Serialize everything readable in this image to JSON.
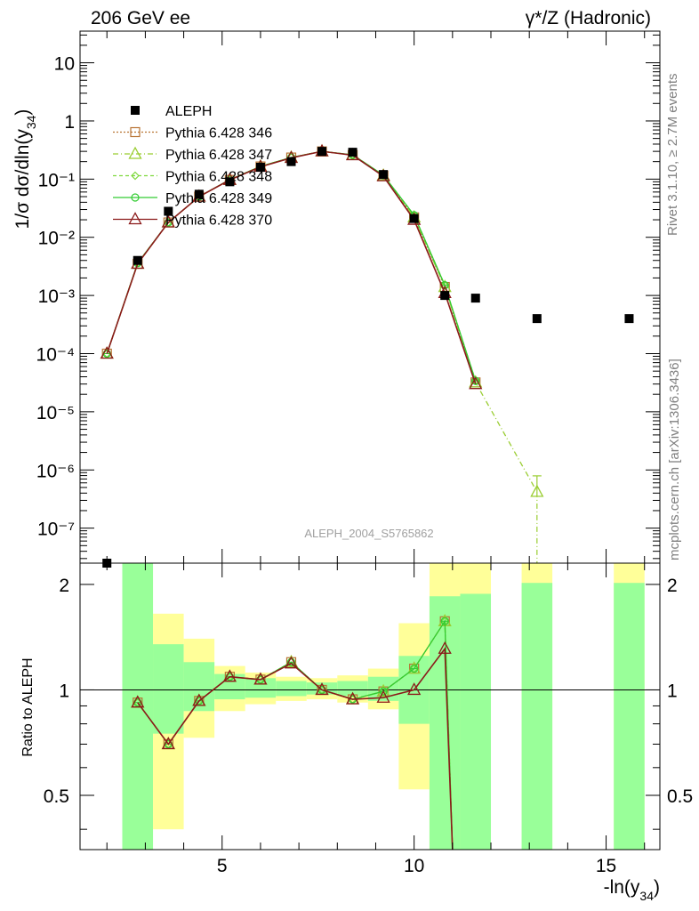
{
  "header": {
    "left": "206 GeV ee",
    "right": "γ*/Z (Hadronic)"
  },
  "side_labels": {
    "rivet": "Rivet 3.1.10, ≥ 2.7M events",
    "site": "mcplots.cern.ch [arXiv:1306.3436]"
  },
  "watermark": "ALEPH_2004_S5765862",
  "colors": {
    "data": "#000000",
    "p346": "#b87333",
    "p347": "#9acd32",
    "p348": "#7fd93f",
    "p349": "#33cc33",
    "p370": "#8b1a1a",
    "band_inner": "#99ff99",
    "band_outer": "#ffff99"
  },
  "chart_data": {
    "type": "line",
    "xlabel": "-ln(y34)",
    "ylabel": "1/σ dσ/dln(y34)",
    "xlim": [
      1.3,
      16.4
    ],
    "ylim": [
      2.5e-08,
      35
    ],
    "y_scale": "log",
    "x_ticks": [
      "5",
      "10",
      "15"
    ],
    "y_ticks": [
      "10⁻⁷",
      "10⁻⁶",
      "10⁻⁵",
      "10⁻⁴",
      "10⁻³",
      "10⁻²",
      "10⁻¹",
      "1",
      "10"
    ],
    "ratio_ylabel": "Ratio to ALEPH",
    "ratio_ylim": [
      0.35,
      2.3
    ],
    "ratio_ticks": [
      "0.5",
      "1",
      "2"
    ],
    "legend": [
      "ALEPH",
      "Pythia 6.428 346",
      "Pythia 6.428 347",
      "Pythia 6.428 348",
      "Pythia 6.428 349",
      "Pythia 6.428 370"
    ],
    "data": {
      "name": "ALEPH",
      "x": [
        2.0,
        2.8,
        3.6,
        4.4,
        5.2,
        6.0,
        6.8,
        7.6,
        8.4,
        9.2,
        10.0,
        10.8,
        11.6,
        13.2,
        15.6
      ],
      "y": [
        2.5e-08,
        0.004,
        0.028,
        0.055,
        0.09,
        0.16,
        0.2,
        0.3,
        0.29,
        0.12,
        0.021,
        0.001,
        0.0009,
        0.0004,
        0.0004
      ]
    },
    "series": [
      {
        "name": "Pythia 6.428 346",
        "x": [
          2.0,
          2.8,
          3.6,
          4.4,
          5.2,
          6.0,
          6.8,
          7.6,
          8.4,
          9.2,
          10.0,
          10.8,
          11.6
        ],
        "y": [
          0.0001,
          0.0035,
          0.018,
          0.05,
          0.097,
          0.165,
          0.235,
          0.3,
          0.26,
          0.115,
          0.022,
          0.0014,
          3.2e-05
        ]
      },
      {
        "name": "Pythia 6.428 347",
        "x": [
          2.0,
          2.8,
          3.6,
          4.4,
          5.2,
          6.0,
          6.8,
          7.6,
          8.4,
          9.2,
          10.0,
          10.8,
          11.6,
          13.2
        ],
        "y": [
          0.0001,
          0.0035,
          0.018,
          0.05,
          0.097,
          0.165,
          0.235,
          0.3,
          0.26,
          0.115,
          0.022,
          0.0014,
          3.2e-05,
          4.2e-07
        ]
      },
      {
        "name": "Pythia 6.428 348",
        "x": [
          2.0,
          2.8,
          3.6,
          4.4,
          5.2,
          6.0,
          6.8,
          7.6,
          8.4,
          9.2,
          10.0,
          10.8,
          11.6
        ],
        "y": [
          0.0001,
          0.0036,
          0.018,
          0.05,
          0.098,
          0.166,
          0.236,
          0.3,
          0.262,
          0.117,
          0.024,
          0.0015,
          3.4e-05
        ]
      },
      {
        "name": "Pythia 6.428 349",
        "x": [
          2.0,
          2.8,
          3.6,
          4.4,
          5.2,
          6.0,
          6.8,
          7.6,
          8.4,
          9.2,
          10.0,
          10.8,
          11.6
        ],
        "y": [
          0.0001,
          0.0036,
          0.018,
          0.05,
          0.098,
          0.166,
          0.236,
          0.3,
          0.262,
          0.117,
          0.024,
          0.0015,
          3.4e-05
        ]
      },
      {
        "name": "Pythia 6.428 370",
        "x": [
          2.0,
          2.8,
          3.6,
          4.4,
          5.2,
          6.0,
          6.8,
          7.6,
          8.4,
          9.2,
          10.0,
          10.8,
          11.6
        ],
        "y": [
          0.0001,
          0.0035,
          0.018,
          0.05,
          0.097,
          0.163,
          0.232,
          0.3,
          0.258,
          0.112,
          0.02,
          0.0011,
          3e-05
        ]
      }
    ],
    "ratio_bands": [
      {
        "x0": 2.4,
        "x1": 3.2,
        "inner": [
          0.35,
          2.3
        ],
        "outer": [
          0.35,
          2.3
        ]
      },
      {
        "x0": 3.2,
        "x1": 4.0,
        "inner": [
          0.75,
          1.35
        ],
        "outer": [
          0.4,
          1.65
        ]
      },
      {
        "x0": 4.0,
        "x1": 4.8,
        "inner": [
          0.87,
          1.2
        ],
        "outer": [
          0.73,
          1.4
        ]
      },
      {
        "x0": 4.8,
        "x1": 5.6,
        "inner": [
          0.94,
          1.11
        ],
        "outer": [
          0.87,
          1.17
        ]
      },
      {
        "x0": 5.6,
        "x1": 6.4,
        "inner": [
          0.95,
          1.08
        ],
        "outer": [
          0.91,
          1.12
        ]
      },
      {
        "x0": 6.4,
        "x1": 7.2,
        "inner": [
          0.96,
          1.06
        ],
        "outer": [
          0.93,
          1.09
        ]
      },
      {
        "x0": 7.2,
        "x1": 8.0,
        "inner": [
          0.97,
          1.05
        ],
        "outer": [
          0.94,
          1.08
        ]
      },
      {
        "x0": 8.0,
        "x1": 8.8,
        "inner": [
          0.96,
          1.06
        ],
        "outer": [
          0.92,
          1.1
        ]
      },
      {
        "x0": 8.8,
        "x1": 9.6,
        "inner": [
          0.93,
          1.09
        ],
        "outer": [
          0.88,
          1.15
        ]
      },
      {
        "x0": 9.6,
        "x1": 10.4,
        "inner": [
          0.8,
          1.25
        ],
        "outer": [
          0.52,
          1.55
        ]
      },
      {
        "x0": 10.4,
        "x1": 11.2,
        "inner": [
          0.35,
          1.85
        ],
        "outer": [
          0.35,
          2.3
        ]
      },
      {
        "x0": 11.2,
        "x1": 12.0,
        "inner": [
          0.35,
          1.88
        ],
        "outer": [
          0.35,
          2.3
        ]
      },
      {
        "x0": 12.8,
        "x1": 13.6,
        "inner": [
          0.35,
          2.02
        ],
        "outer": [
          0.35,
          2.3
        ]
      },
      {
        "x0": 15.2,
        "x1": 16.0,
        "inner": [
          0.35,
          2.02
        ],
        "outer": [
          0.35,
          2.3
        ]
      }
    ],
    "ratio_series": [
      {
        "name": "Pythia 6.428 346",
        "x": [
          2.8,
          3.6,
          4.4,
          5.2,
          6.0,
          6.8,
          7.6,
          8.4,
          9.2,
          10.0,
          10.8,
          11.0
        ],
        "y": [
          0.92,
          0.7,
          0.93,
          1.09,
          1.07,
          1.2,
          1.0,
          0.94,
          0.99,
          1.15,
          1.57,
          0.3
        ]
      },
      {
        "name": "Pythia 6.428 347",
        "x": [
          2.8,
          3.6,
          4.4,
          5.2,
          6.0,
          6.8,
          7.6,
          8.4,
          9.2,
          10.0,
          10.8,
          11.0
        ],
        "y": [
          0.92,
          0.7,
          0.93,
          1.09,
          1.07,
          1.2,
          1.0,
          0.94,
          0.99,
          1.15,
          1.57,
          0.3
        ]
      },
      {
        "name": "Pythia 6.428 348",
        "x": [
          2.8,
          3.6,
          4.4,
          5.2,
          6.0,
          6.8,
          7.6,
          8.4,
          9.2,
          10.0,
          10.8,
          11.0
        ],
        "y": [
          0.92,
          0.7,
          0.93,
          1.09,
          1.07,
          1.2,
          1.0,
          0.94,
          0.99,
          1.15,
          1.57,
          0.3
        ]
      },
      {
        "name": "Pythia 6.428 349",
        "x": [
          2.8,
          3.6,
          4.4,
          5.2,
          6.0,
          6.8,
          7.6,
          8.4,
          9.2,
          10.0,
          10.8,
          11.0
        ],
        "y": [
          0.92,
          0.7,
          0.93,
          1.09,
          1.07,
          1.2,
          1.0,
          0.94,
          0.99,
          1.15,
          1.57,
          0.3
        ]
      },
      {
        "name": "Pythia 6.428 370",
        "x": [
          2.8,
          3.6,
          4.4,
          5.2,
          6.0,
          6.8,
          7.6,
          8.4,
          9.2,
          10.0,
          10.8,
          11.0
        ],
        "y": [
          0.92,
          0.7,
          0.93,
          1.09,
          1.07,
          1.19,
          1.0,
          0.94,
          0.95,
          1.0,
          1.31,
          0.3
        ]
      }
    ]
  }
}
